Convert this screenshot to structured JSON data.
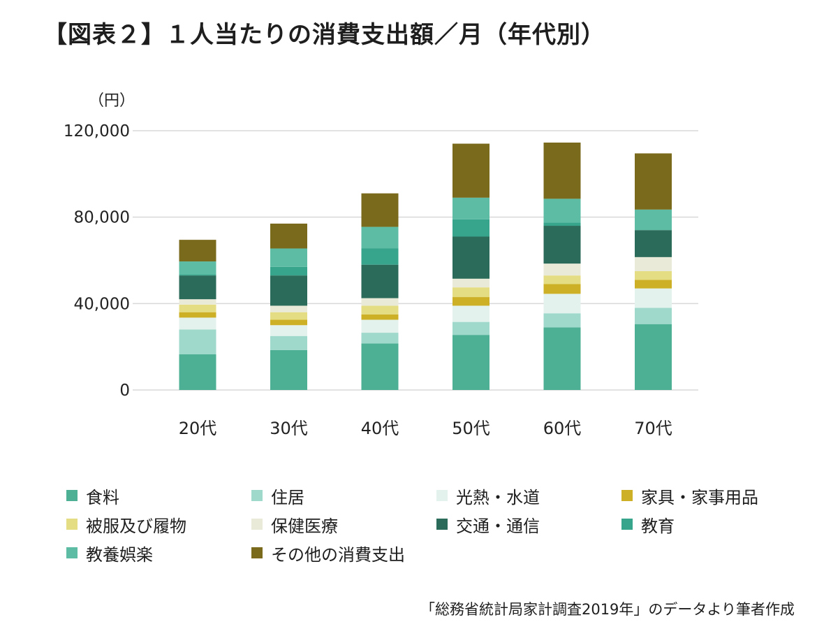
{
  "title": "【図表２】１人当たりの消費支出額／月（年代別）",
  "source": "「総務省統計局家計調査2019年」のデータより筆者作成",
  "chart_data": {
    "type": "bar",
    "stacked": true,
    "ylabel": "（円）",
    "ylim": [
      0,
      120000
    ],
    "yticks": [
      0,
      40000,
      80000,
      120000
    ],
    "ytick_labels": [
      "0",
      "40,000",
      "80,000",
      "120,000"
    ],
    "grid": true,
    "legend_position": "bottom",
    "categories": [
      "20代",
      "30代",
      "40代",
      "50代",
      "60代",
      "70代"
    ],
    "series": [
      {
        "name": "食料",
        "color": "#4db095",
        "values": [
          16500,
          18500,
          21500,
          25500,
          29000,
          30500
        ]
      },
      {
        "name": "住居",
        "color": "#9ed9cb",
        "values": [
          11500,
          6500,
          5000,
          6000,
          6500,
          7500
        ]
      },
      {
        "name": "光熱・水道",
        "color": "#e3f2ed",
        "values": [
          5500,
          5000,
          6000,
          7500,
          9000,
          9000
        ]
      },
      {
        "name": "家具・家事用品",
        "color": "#cdb026",
        "values": [
          2500,
          2500,
          2500,
          4000,
          4500,
          4000
        ]
      },
      {
        "name": "被服及び履物",
        "color": "#e5dd84",
        "values": [
          3500,
          3500,
          4000,
          4500,
          4000,
          4000
        ]
      },
      {
        "name": "保健医療",
        "color": "#eaead8",
        "values": [
          2500,
          3000,
          3500,
          4000,
          5500,
          6500
        ]
      },
      {
        "name": "交通・通信",
        "color": "#2b6b59",
        "values": [
          11000,
          14000,
          15500,
          19500,
          17500,
          12500
        ]
      },
      {
        "name": "教育",
        "color": "#37a58c",
        "values": [
          500,
          4000,
          7500,
          8000,
          1500,
          0
        ]
      },
      {
        "name": "教養娯楽",
        "color": "#5dbca4",
        "values": [
          6000,
          8500,
          10000,
          10000,
          11000,
          9500
        ]
      },
      {
        "name": "その他の消費支出",
        "color": "#7a6a1c",
        "values": [
          10000,
          11500,
          15500,
          25000,
          26000,
          26000
        ]
      }
    ]
  }
}
